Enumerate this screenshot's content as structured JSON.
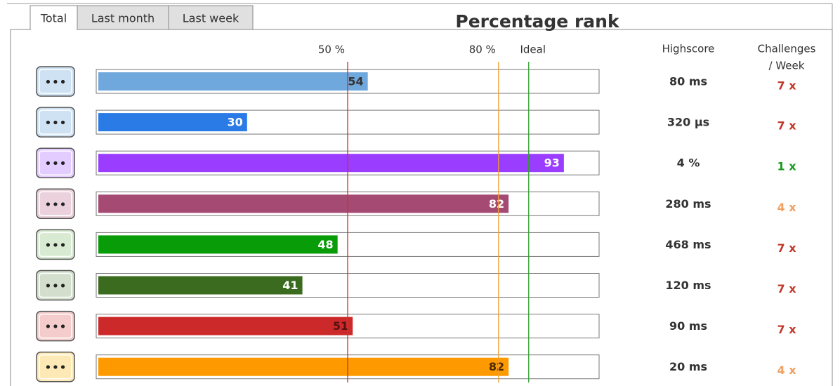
{
  "tabs": [
    "Total",
    "Last month",
    "Last week"
  ],
  "chart_data": {
    "type": "bar",
    "orientation": "horizontal",
    "title": "Percentage rank",
    "xlim": [
      0,
      100
    ],
    "reference_lines": [
      {
        "value": 50,
        "label": "50 %",
        "color": "#c0392b"
      },
      {
        "value": 80,
        "label": "80 %",
        "color": "#f0a030"
      },
      {
        "value": 86,
        "label": "Ideal",
        "color": "#2ca02c"
      }
    ],
    "values": [
      54,
      30,
      93,
      82,
      48,
      41,
      51,
      82
    ],
    "colors": [
      "#6fa8dc",
      "#2b7be6",
      "#9b3dff",
      "#a54a73",
      "#089c08",
      "#3a6b1e",
      "#cc2a2a",
      "#ff9900"
    ],
    "label_colors": [
      "#333333",
      "#ffffff",
      "#ffffff",
      "#ffffff",
      "#ffffff",
      "#ffffff",
      "#5a1010",
      "#4a2a00"
    ],
    "icon_colors": [
      "#cfe2f3",
      "#cfe2f3",
      "#e3ccff",
      "#ead1dc",
      "#d9ead3",
      "#d3dfcc",
      "#f4cccc",
      "#fde9b5"
    ],
    "highscore_header": "Highscore",
    "challenges_header": [
      "Challenges",
      "/ Week"
    ],
    "highscores": [
      "80 ms",
      "320 µs",
      "4 %",
      "280 ms",
      "468 ms",
      "120 ms",
      "90 ms",
      "20 ms"
    ],
    "challenges": [
      "7 x",
      "7 x",
      "1 x",
      "4 x",
      "7 x",
      "7 x",
      "7 x",
      "4 x"
    ],
    "challenge_colors": [
      "#c0392b",
      "#c0392b",
      "#1a9a1a",
      "#f0a060",
      "#c0392b",
      "#c0392b",
      "#c0392b",
      "#f0a060"
    ]
  }
}
